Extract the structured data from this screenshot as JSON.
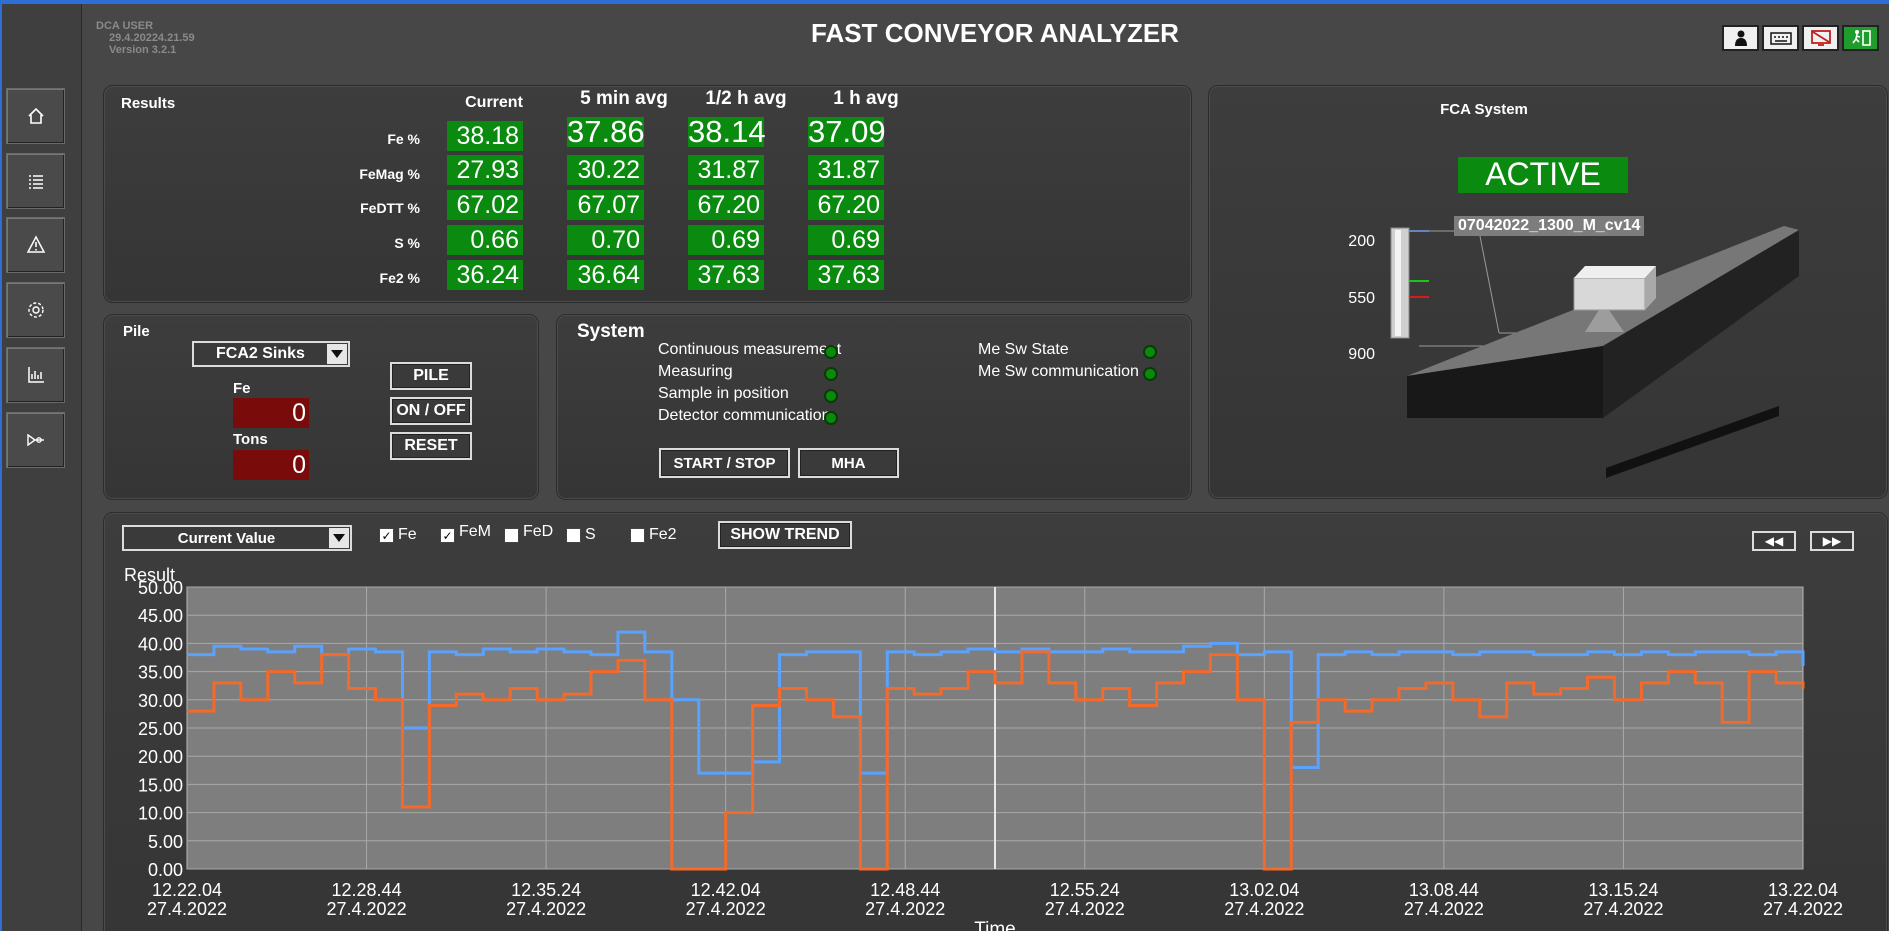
{
  "app": {
    "title": "FAST CONVEYOR ANALYZER",
    "user": "DCA USER",
    "datetime": "29.4.20224.21.59",
    "version": "Version 3.2.1"
  },
  "sidebar": {
    "items": [
      {
        "icon": "home-icon"
      },
      {
        "icon": "list-icon"
      },
      {
        "icon": "warning-icon"
      },
      {
        "icon": "gear-icon"
      },
      {
        "icon": "chart-icon"
      },
      {
        "icon": "signal-icon"
      }
    ]
  },
  "top_icons": [
    "user-icon",
    "keyboard-icon",
    "screen-off-icon",
    "exit-icon"
  ],
  "results": {
    "title": "Results",
    "columns": [
      "Current",
      "5 min avg",
      "1/2 h avg",
      "1 h avg"
    ],
    "rows": [
      {
        "label": "Fe %",
        "values": [
          "38.18",
          "37.86",
          "38.14",
          "37.09"
        ]
      },
      {
        "label": "FeMag %",
        "values": [
          "27.93",
          "30.22",
          "31.87",
          "31.87"
        ]
      },
      {
        "label": "FeDTT %",
        "values": [
          "67.02",
          "67.07",
          "67.20",
          "67.20"
        ]
      },
      {
        "label": "S %",
        "values": [
          "0.66",
          "0.70",
          "0.69",
          "0.69"
        ]
      },
      {
        "label": "Fe2 %",
        "values": [
          "36.24",
          "36.64",
          "37.63",
          "37.63"
        ]
      }
    ]
  },
  "pile": {
    "title": "Pile",
    "selected": "FCA2 Sinks",
    "fe_label": "Fe",
    "fe_value": "0",
    "tons_label": "Tons",
    "tons_value": "0",
    "buttons": {
      "pile": "PILE",
      "onoff": "ON / OFF",
      "reset": "RESET"
    }
  },
  "system": {
    "title": "System",
    "statuses_left": [
      "Continuous measurement",
      "Measuring",
      "Sample in position",
      "Detector communication"
    ],
    "statuses_right": [
      "Me Sw State",
      "Me Sw communication"
    ],
    "buttons": {
      "start_stop": "START / STOP",
      "mha": "MHA"
    }
  },
  "fca": {
    "title": "FCA System",
    "status": "ACTIVE",
    "file": "07042022_1300_M_cv14",
    "scale": [
      "200",
      "550",
      "900"
    ]
  },
  "trend": {
    "mode": "Current Value",
    "checks": [
      {
        "label": "Fe",
        "checked": true
      },
      {
        "label": "FeM",
        "checked": true
      },
      {
        "label": "FeD",
        "checked": false
      },
      {
        "label": "S",
        "checked": false
      },
      {
        "label": "Fe2",
        "checked": false
      }
    ],
    "show_trend": "SHOW TREND",
    "prev": "◀◀",
    "next": "▶▶"
  },
  "chart_data": {
    "type": "line",
    "ylabel": "Result",
    "xlabel": "Time",
    "ylim": [
      0,
      50
    ],
    "yticks": [
      "50.00",
      "45.00",
      "40.00",
      "35.00",
      "30.00",
      "25.00",
      "20.00",
      "15.00",
      "10.00",
      "5.00",
      "0.00"
    ],
    "xticks": [
      {
        "time": "12.22.04",
        "date": "27.4.2022"
      },
      {
        "time": "12.28.44",
        "date": "27.4.2022"
      },
      {
        "time": "12.35.24",
        "date": "27.4.2022"
      },
      {
        "time": "12.42.04",
        "date": "27.4.2022"
      },
      {
        "time": "12.48.44",
        "date": "27.4.2022"
      },
      {
        "time": "12.55.24",
        "date": "27.4.2022"
      },
      {
        "time": "13.02.04",
        "date": "27.4.2022"
      },
      {
        "time": "13.08.44",
        "date": "27.4.2022"
      },
      {
        "time": "13.15.24",
        "date": "27.4.2022"
      },
      {
        "time": "13.22.04",
        "date": "27.4.2022"
      }
    ],
    "x_minutes": [
      0,
      1,
      2,
      3,
      4,
      5,
      6,
      7,
      8,
      9,
      10,
      11,
      12,
      13,
      14,
      15,
      16,
      17,
      18,
      19,
      20,
      21,
      22,
      23,
      24,
      25,
      26,
      27,
      28,
      29,
      30,
      31,
      32,
      33,
      34,
      35,
      36,
      37,
      38,
      39,
      40,
      41,
      42,
      43,
      44,
      45,
      46,
      47,
      48,
      49,
      50,
      51,
      52,
      53,
      54,
      55,
      56,
      57,
      58,
      59,
      60
    ],
    "series": [
      {
        "color": "#5aa2ff",
        "values": [
          38.0,
          39.5,
          39.0,
          38.5,
          39.5,
          38.0,
          39.0,
          38.5,
          25.0,
          38.5,
          38.0,
          39.0,
          38.5,
          39.0,
          38.5,
          38.0,
          42.0,
          38.5,
          30.0,
          17.0,
          17.0,
          19.0,
          38.0,
          38.5,
          38.5,
          17.0,
          38.5,
          38.0,
          38.5,
          39.0,
          38.5,
          39.0,
          38.5,
          38.5,
          39.0,
          38.5,
          38.5,
          39.5,
          40.0,
          38.0,
          38.5,
          18.0,
          38.0,
          38.5,
          38.0,
          38.5,
          38.5,
          38.0,
          38.5,
          38.5,
          38.0,
          38.0,
          38.5,
          38.0,
          38.5,
          38.0,
          38.5,
          38.5,
          38.0,
          38.5,
          36.0
        ]
      },
      {
        "color": "#f36a2a",
        "values": [
          28.0,
          33.0,
          30.0,
          35.0,
          33.0,
          38.0,
          32.0,
          30.0,
          11.0,
          29.0,
          31.0,
          30.0,
          32.0,
          30.0,
          31.0,
          35.0,
          37.0,
          30.0,
          0.0,
          0.0,
          10.0,
          29.0,
          32.0,
          30.0,
          27.0,
          0.0,
          32.0,
          31.0,
          32.0,
          35.0,
          33.0,
          38.5,
          33.0,
          30.0,
          32.0,
          29.0,
          33.0,
          35.0,
          38.0,
          30.0,
          0.0,
          26.0,
          30.0,
          28.0,
          30.0,
          32.0,
          33.0,
          30.0,
          27.0,
          33.0,
          31.0,
          32.0,
          34.0,
          30.0,
          33.0,
          35.0,
          33.0,
          26.0,
          35.0,
          33.0,
          32.0
        ]
      }
    ]
  }
}
